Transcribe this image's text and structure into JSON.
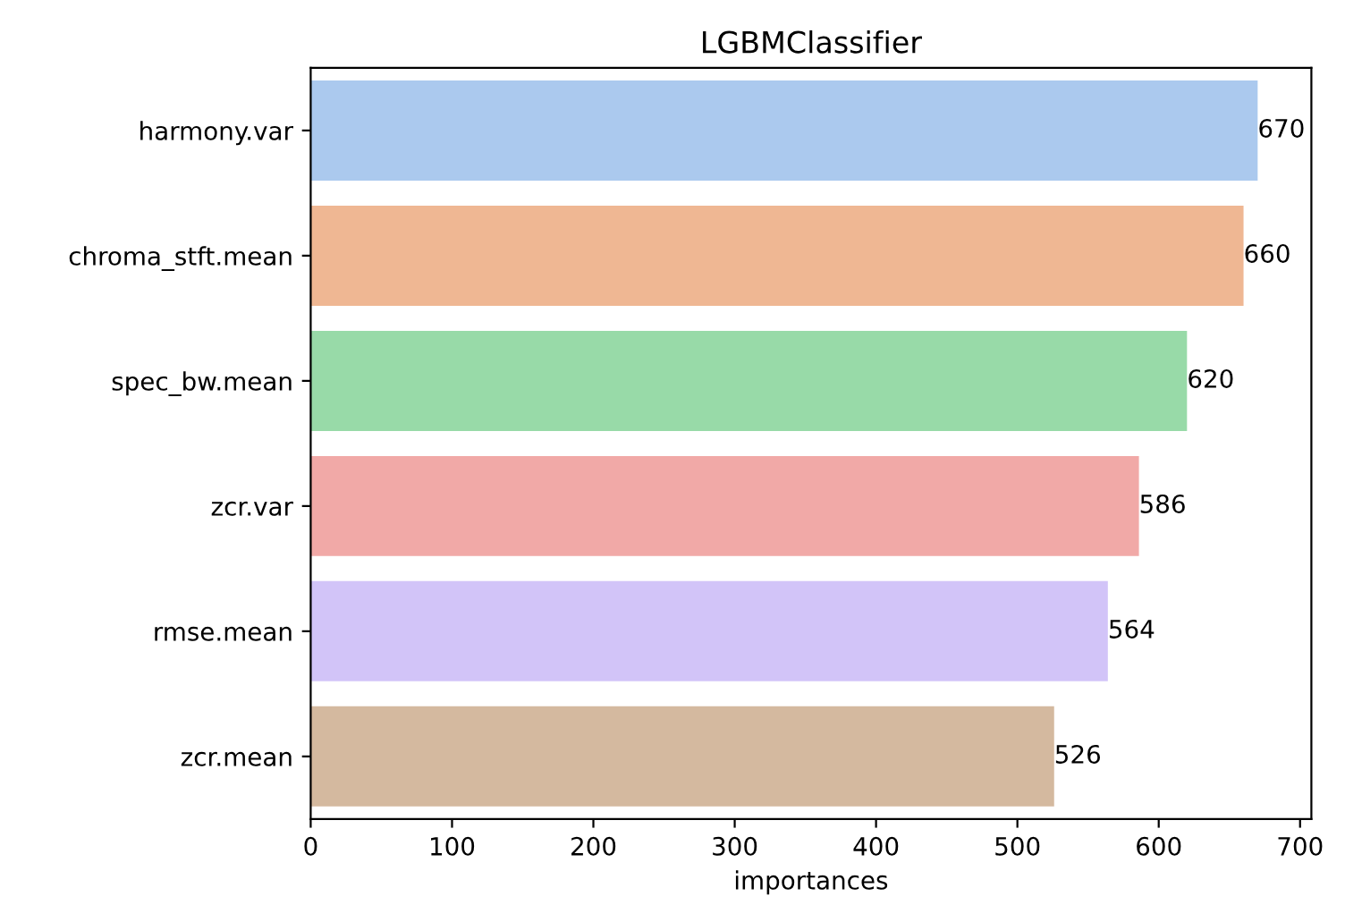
{
  "chart_data": {
    "type": "bar",
    "orientation": "horizontal",
    "title": "LGBMClassifier",
    "xlabel": "importances",
    "categories": [
      "harmony.var",
      "chroma_stft.mean",
      "spec_bw.mean",
      "zcr.var",
      "rmse.mean",
      "zcr.mean"
    ],
    "values": [
      670,
      660,
      620,
      586,
      564,
      526
    ],
    "colors": [
      "#abc9ee",
      "#efb793",
      "#98daa8",
      "#f1a9a7",
      "#d2c4f8",
      "#d4b99f"
    ],
    "xlim": [
      0,
      708
    ],
    "xticks": [
      0,
      100,
      200,
      300,
      400,
      500,
      600,
      700
    ],
    "data_labels": true,
    "grid": false,
    "legend": false
  }
}
